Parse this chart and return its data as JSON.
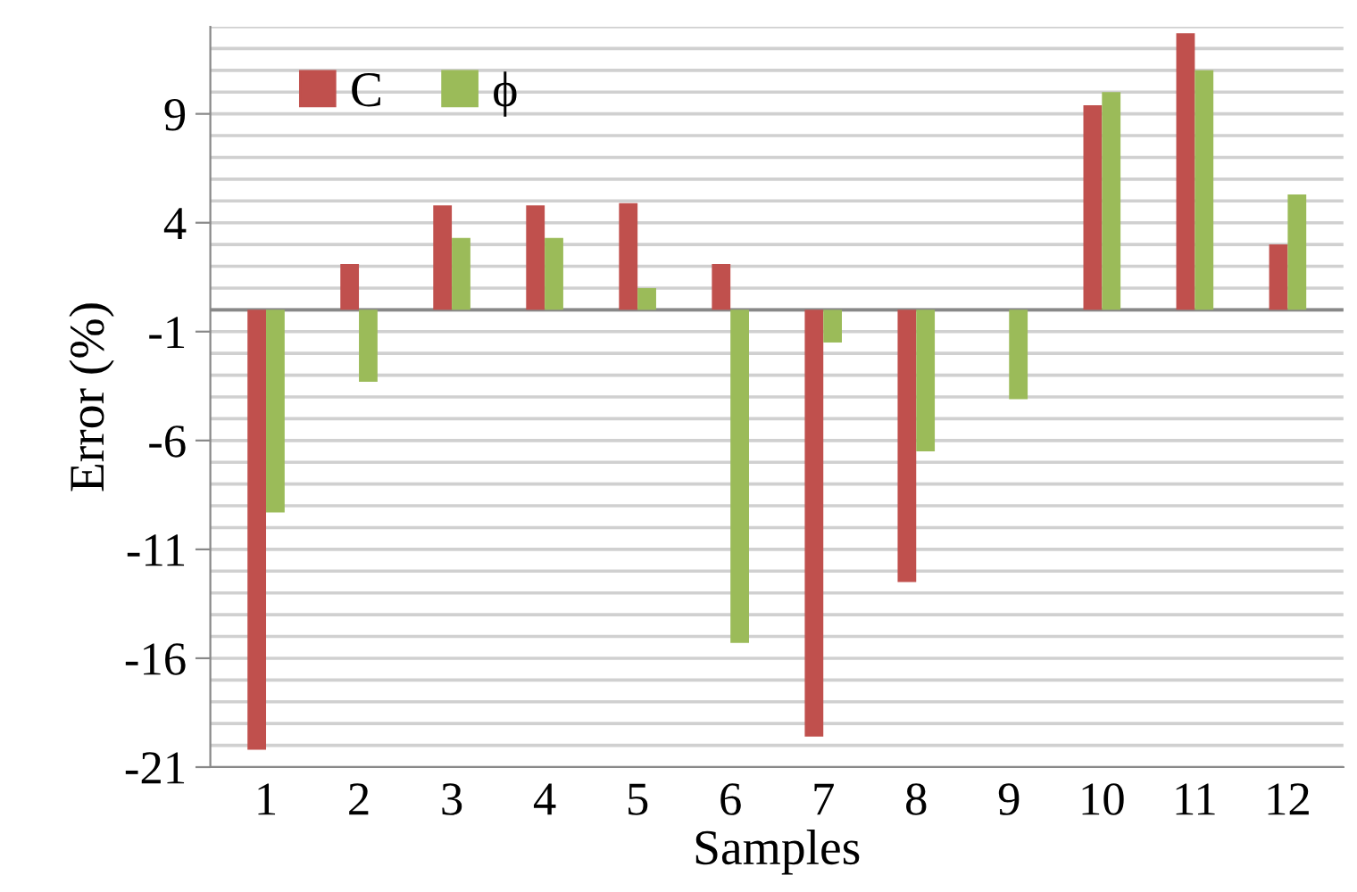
{
  "chart_data": {
    "type": "bar",
    "xlabel": "Samples",
    "ylabel": "Error (%)",
    "categories": [
      "1",
      "2",
      "3",
      "4",
      "5",
      "6",
      "7",
      "8",
      "9",
      "10",
      "11",
      "12"
    ],
    "series": [
      {
        "name": "C",
        "color": "#c0504d",
        "values": [
          -20.2,
          2.1,
          4.8,
          4.8,
          4.9,
          2.1,
          -19.6,
          -12.5,
          0,
          9.4,
          12.7,
          3.0
        ]
      },
      {
        "name": "ϕ",
        "color": "#9bbb59",
        "values": [
          -9.3,
          -3.3,
          3.3,
          3.3,
          1.0,
          -15.3,
          -1.5,
          -6.5,
          -4.1,
          10.0,
          11.0,
          5.3
        ]
      }
    ],
    "ylim": [
      -21,
      13
    ],
    "yticks": [
      -21,
      {
        "value": -20,
        "label": null
      },
      {
        "value": -19,
        "label": null
      },
      {
        "value": -18,
        "label": null
      },
      {
        "value": -17,
        "label": null
      },
      -16,
      {
        "value": -15,
        "label": null
      },
      {
        "value": -14,
        "label": null
      },
      {
        "value": -13,
        "label": null
      },
      {
        "value": -12,
        "label": null
      },
      -11,
      {
        "value": -10,
        "label": null
      },
      {
        "value": -9,
        "label": null
      },
      {
        "value": -8,
        "label": null
      },
      {
        "value": -7,
        "label": null
      },
      -6,
      {
        "value": -5,
        "label": null
      },
      {
        "value": -4,
        "label": null
      },
      {
        "value": -3,
        "label": null
      },
      {
        "value": -2,
        "label": null
      },
      -1,
      {
        "value": 0,
        "label": null
      },
      {
        "value": 1,
        "label": null
      },
      {
        "value": 2,
        "label": null
      },
      {
        "value": 3,
        "label": null
      },
      4,
      {
        "value": 5,
        "label": null
      },
      {
        "value": 6,
        "label": null
      },
      {
        "value": 7,
        "label": null
      },
      {
        "value": 8,
        "label": null
      },
      9,
      {
        "value": 10,
        "label": null
      },
      {
        "value": 11,
        "label": null
      },
      {
        "value": 12,
        "label": null
      },
      {
        "value": 13,
        "label": null
      }
    ],
    "grid": "y",
    "legend": "top left"
  }
}
